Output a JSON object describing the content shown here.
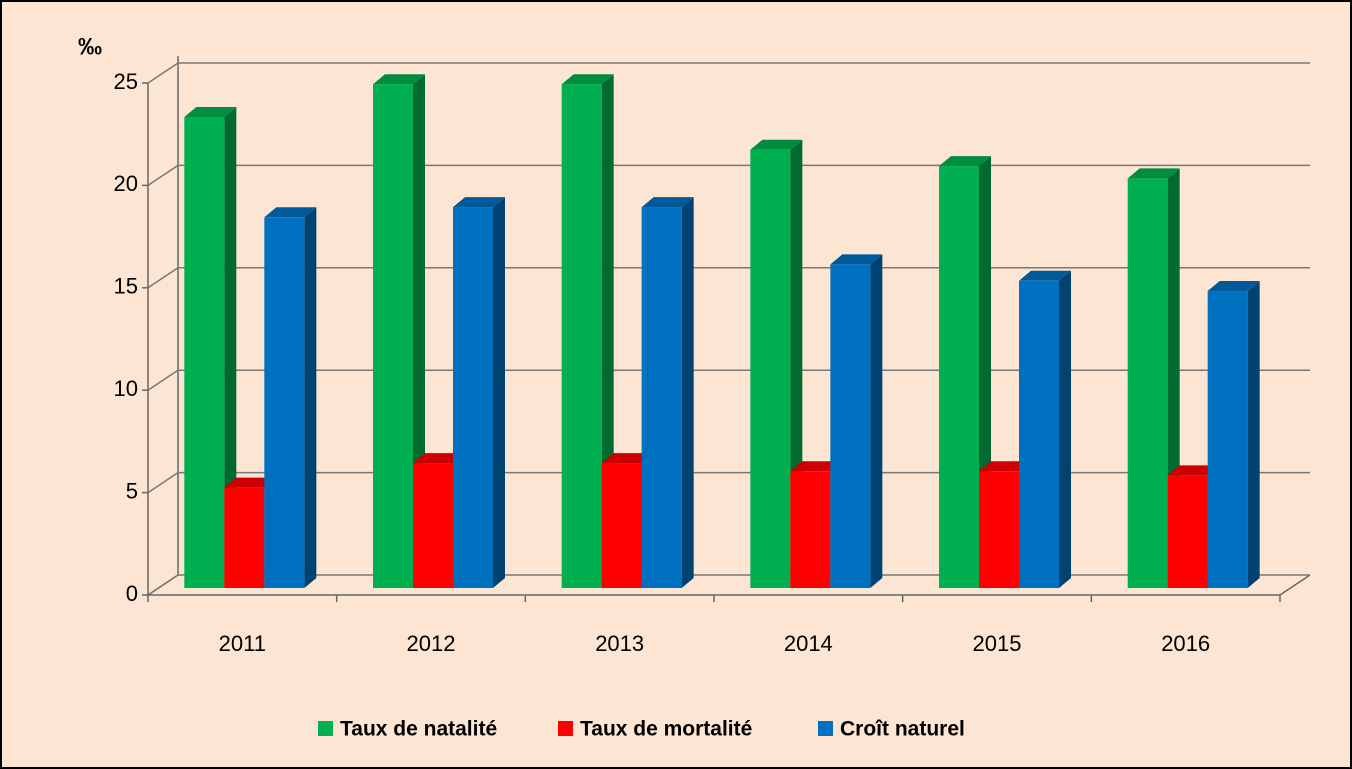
{
  "chart_data": {
    "type": "bar3d",
    "y_label": "‰",
    "categories": [
      "2011",
      "2012",
      "2013",
      "2014",
      "2015",
      "2016"
    ],
    "series": [
      {
        "name": "Taux de natalité",
        "color": "#00b050",
        "values": [
          23.0,
          24.6,
          24.6,
          21.4,
          20.6,
          20.0
        ]
      },
      {
        "name": "Taux de mortalité",
        "color": "#ff0000",
        "values": [
          4.9,
          6.1,
          6.1,
          5.7,
          5.7,
          5.5
        ]
      },
      {
        "name": "Croît naturel",
        "color": "#0070c0",
        "values": [
          18.1,
          18.6,
          18.6,
          15.8,
          15.0,
          14.5
        ]
      }
    ],
    "ylim": [
      0,
      25
    ],
    "yticks": [
      0,
      5,
      10,
      15,
      20,
      25
    ],
    "grid": true,
    "legend": "bottom"
  }
}
